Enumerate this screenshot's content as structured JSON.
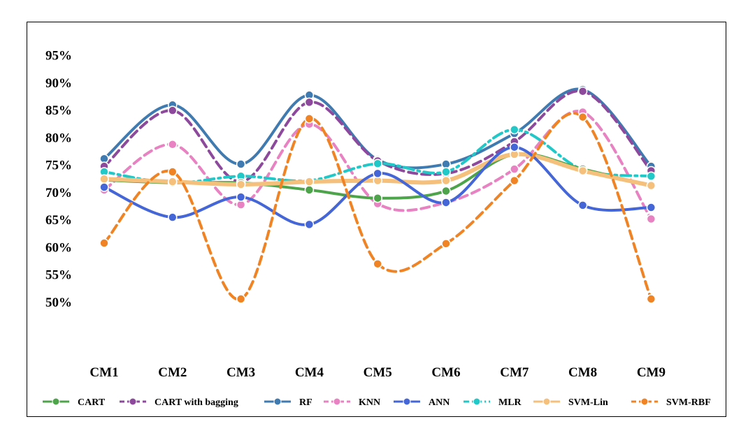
{
  "chart_data": {
    "type": "line",
    "title": "",
    "xlabel": "",
    "ylabel": "",
    "categories": [
      "CM1",
      "CM2",
      "CM3",
      "CM4",
      "CM5",
      "CM6",
      "CM7",
      "CM8",
      "CM9"
    ],
    "y_ticks": [
      50,
      55,
      60,
      65,
      70,
      75,
      80,
      85,
      90,
      95
    ],
    "y_tick_labels": [
      "50%",
      "55%",
      "60%",
      "65%",
      "70%",
      "75%",
      "80%",
      "85%",
      "90%",
      "95%"
    ],
    "ylim": [
      45,
      97
    ],
    "grid": false,
    "legend_position": "bottom",
    "series": [
      {
        "name": "CART",
        "color": "#4ea44a",
        "dash": "solid",
        "values": [
          72.3,
          71.8,
          71.8,
          70.5,
          69.0,
          70.3,
          77.0,
          74.3,
          71.2
        ]
      },
      {
        "name": "CART with bagging",
        "color": "#8d4a9d",
        "dash": "dash",
        "values": [
          74.8,
          85.0,
          72.0,
          86.5,
          75.8,
          73.5,
          79.3,
          88.5,
          74.0
        ]
      },
      {
        "name": "RF",
        "color": "#3f7bb0",
        "dash": "solid",
        "values": [
          76.2,
          86.0,
          75.2,
          87.8,
          76.0,
          75.2,
          80.8,
          88.8,
          74.8
        ]
      },
      {
        "name": "KNN",
        "color": "#e882c2",
        "dash": "dash",
        "values": [
          70.5,
          78.8,
          67.8,
          82.5,
          68.0,
          68.2,
          74.3,
          84.7,
          65.2
        ]
      },
      {
        "name": "ANN",
        "color": "#4466d6",
        "dash": "solid",
        "values": [
          71.0,
          65.5,
          69.2,
          64.2,
          73.5,
          68.2,
          78.3,
          67.7,
          67.3
        ]
      },
      {
        "name": "MLR",
        "color": "#22c8c8",
        "dash": "dashdot",
        "values": [
          73.8,
          71.8,
          73.0,
          72.2,
          75.3,
          73.8,
          81.5,
          74.2,
          73.0
        ]
      },
      {
        "name": "SVM-Lin",
        "color": "#f5c07c",
        "dash": "solid",
        "values": [
          72.5,
          72.0,
          71.5,
          72.0,
          72.2,
          72.2,
          77.0,
          74.0,
          71.3
        ]
      },
      {
        "name": "SVM-RBF",
        "color": "#f08424",
        "dash": "dash",
        "values": [
          60.8,
          73.8,
          50.6,
          83.5,
          57.0,
          60.7,
          72.2,
          83.8,
          50.6
        ]
      }
    ]
  }
}
